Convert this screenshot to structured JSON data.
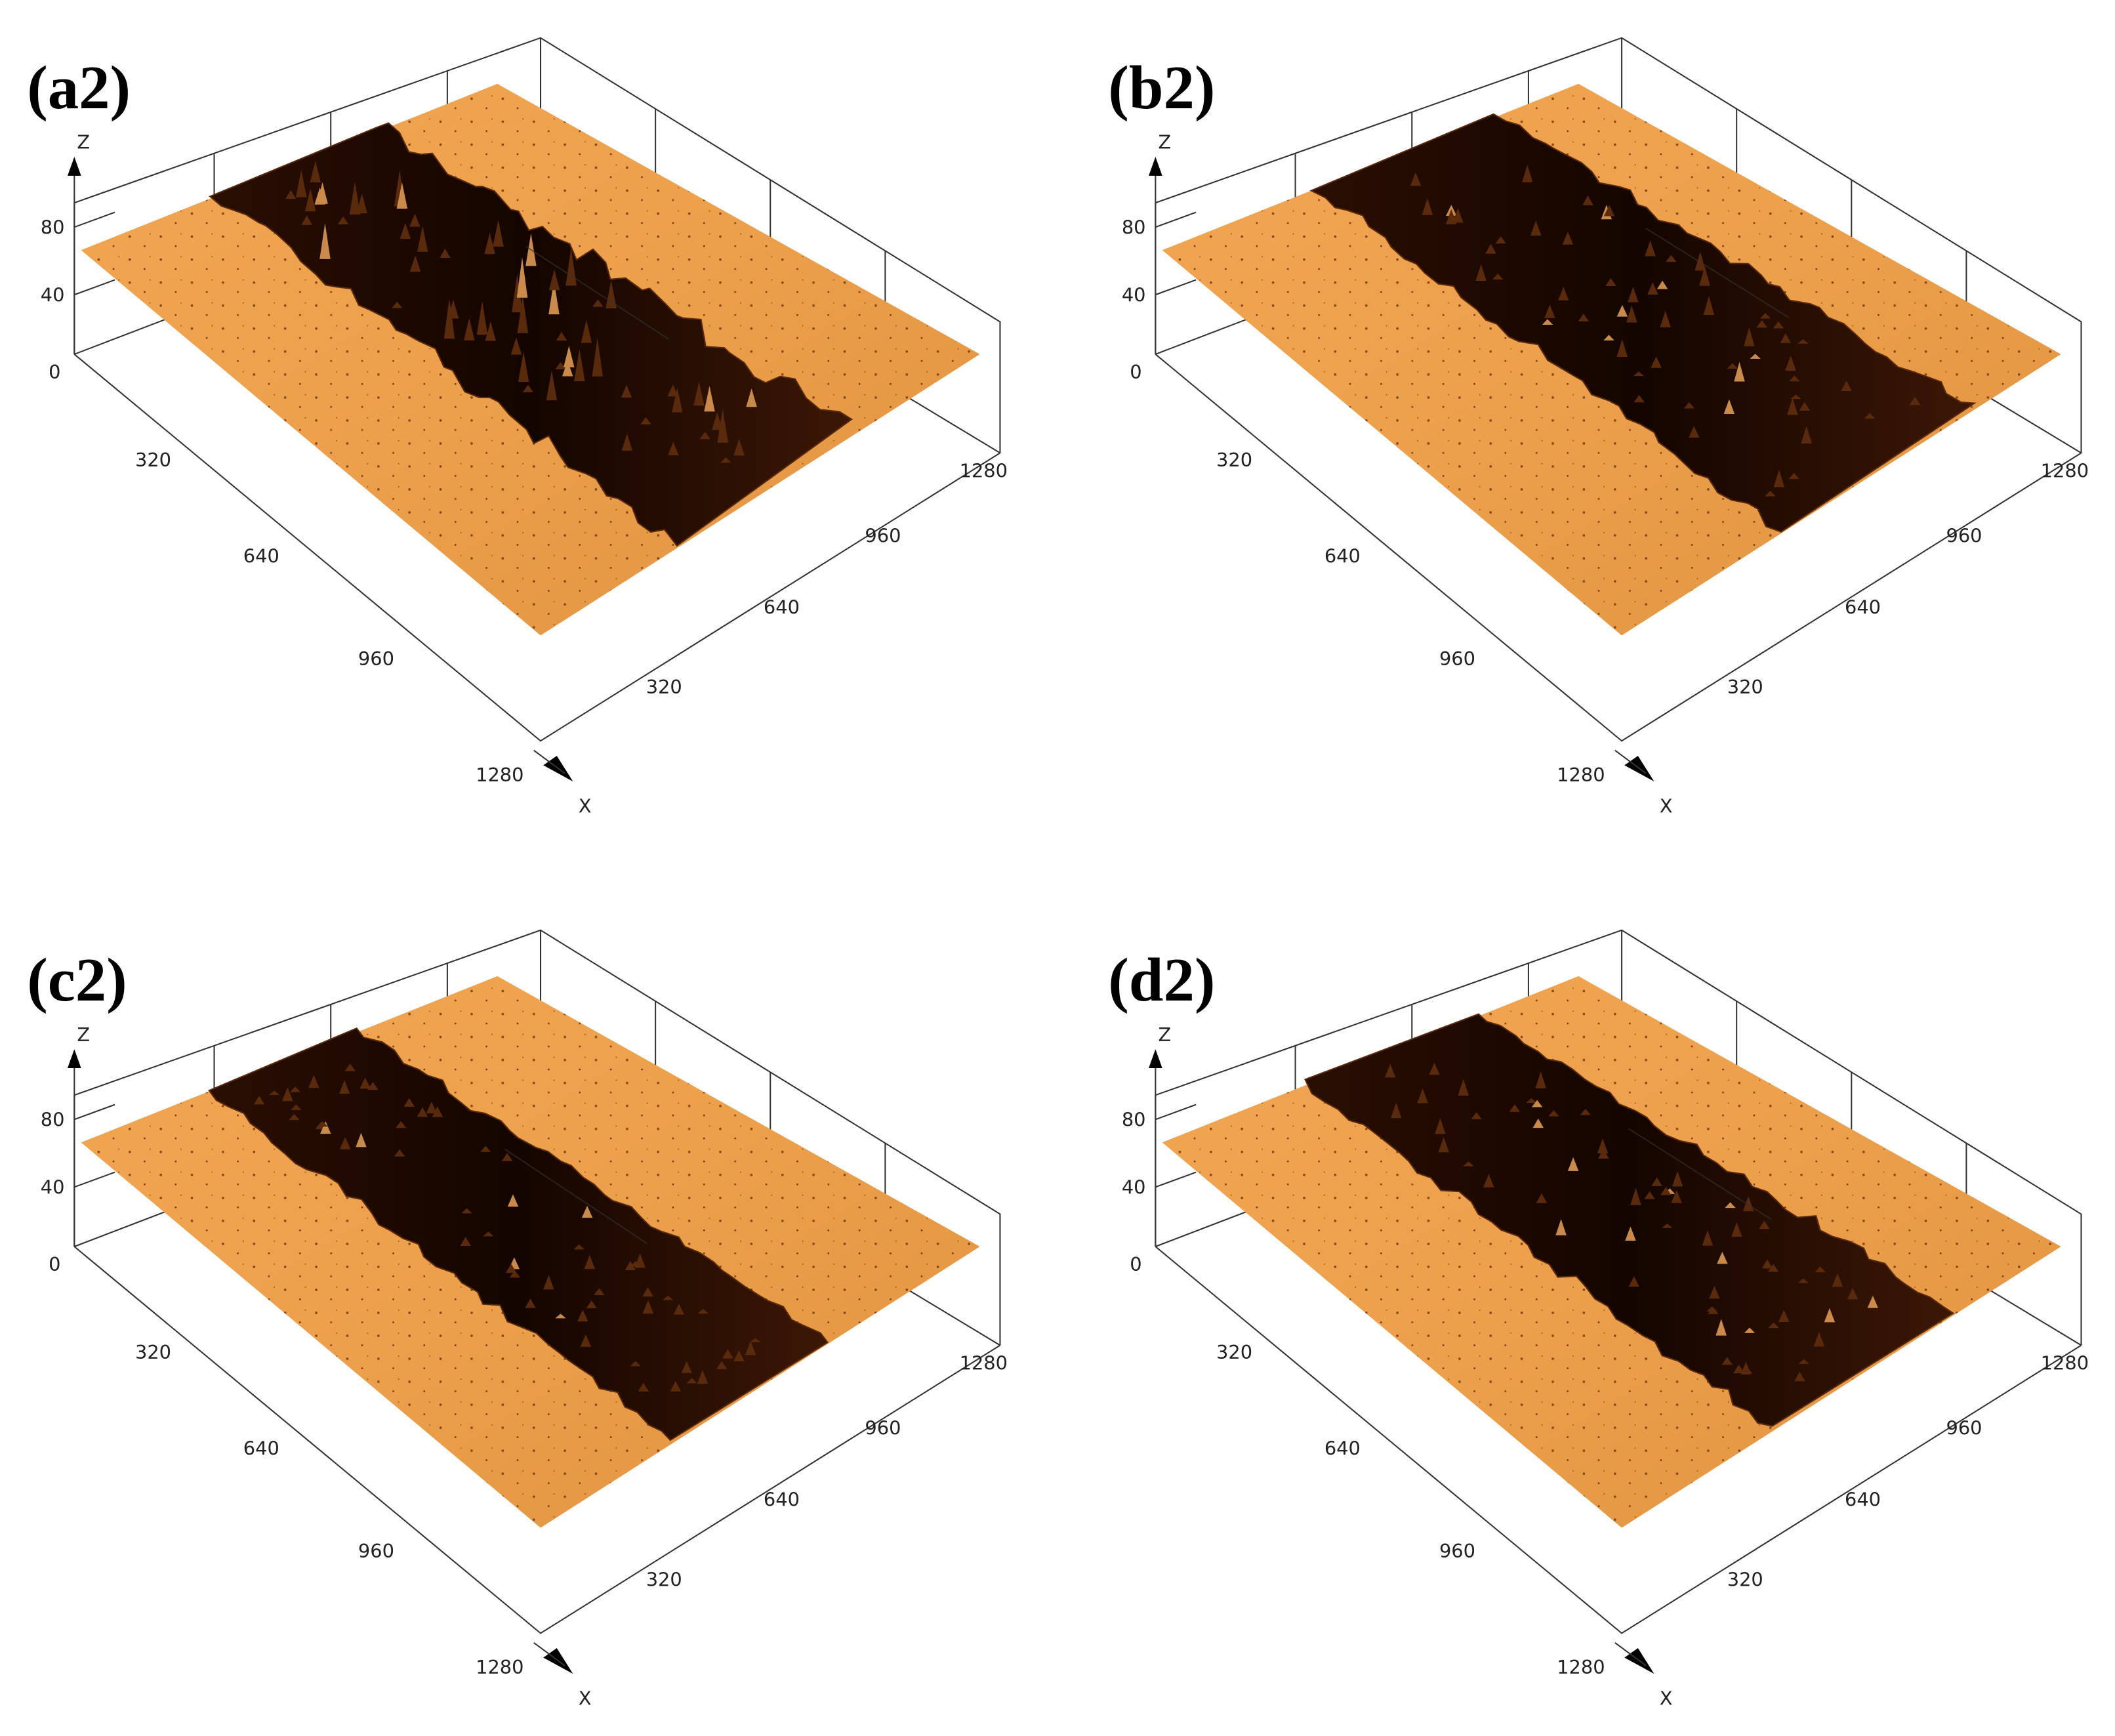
{
  "panels": [
    {
      "label": "(a2)",
      "z_axis_label": "Z",
      "x_axis_label": "X",
      "z_ticks": [
        80,
        40,
        0
      ],
      "left_ticks": [
        320,
        640,
        960,
        1280
      ],
      "right_ticks": [
        320,
        640,
        960,
        1280
      ]
    },
    {
      "label": "(b2)",
      "z_axis_label": "Z",
      "x_axis_label": "X",
      "z_ticks": [
        80,
        40,
        0
      ],
      "left_ticks": [
        320,
        640,
        960,
        1280
      ],
      "right_ticks": [
        320,
        640,
        960,
        1280
      ]
    },
    {
      "label": "(c2)",
      "z_axis_label": "Z",
      "x_axis_label": "X",
      "z_ticks": [
        80,
        40,
        0
      ],
      "left_ticks": [
        320,
        640,
        960,
        1280
      ],
      "right_ticks": [
        320,
        640,
        960,
        1280
      ]
    },
    {
      "label": "(d2)",
      "z_axis_label": "Z",
      "x_axis_label": "X",
      "z_ticks": [
        80,
        40,
        0
      ],
      "left_ticks": [
        320,
        640,
        960,
        1280
      ],
      "right_ticks": [
        320,
        640,
        960,
        1280
      ]
    }
  ]
}
